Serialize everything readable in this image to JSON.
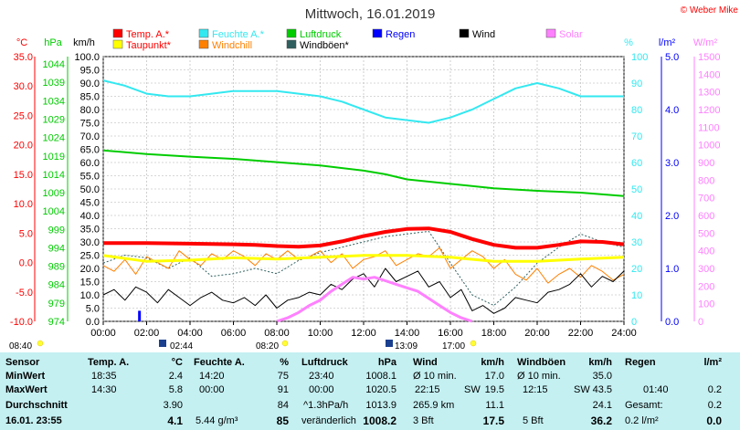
{
  "header": {
    "title": "Mittwoch, 16.01.2019",
    "copyright": "© Weber Mike"
  },
  "legend": [
    {
      "label": "Temp. A.*",
      "color": "#ff0000",
      "row": 0,
      "col": 0
    },
    {
      "label": "Feuchte A.*",
      "color": "#33e8f0",
      "row": 0,
      "col": 1
    },
    {
      "label": "Luftdruck",
      "color": "#00cc00",
      "row": 0,
      "col": 2
    },
    {
      "label": "Regen",
      "color": "#0000ff",
      "row": 0,
      "col": 3
    },
    {
      "label": "Wind",
      "color": "#000000",
      "row": 0,
      "col": 4
    },
    {
      "label": "Solar",
      "color": "#ff80ff",
      "row": 0,
      "col": 5
    },
    {
      "label": "Taupunkt*",
      "color": "#ffff00",
      "row": 1,
      "col": 0
    },
    {
      "label": "Windchill",
      "color": "#ff8000",
      "row": 1,
      "col": 1
    },
    {
      "label": "Windböen*",
      "color": "#2f5f5f",
      "row": 1,
      "col": 2
    }
  ],
  "axis_units": {
    "temp": "°C",
    "pressure": "hPa",
    "wind": "km/h",
    "humidity": "%",
    "rain": "l/m²",
    "solar": "W/m²"
  },
  "colors": {
    "temp": "#ff0000",
    "pressure": "#00cc00",
    "humidity": "#33e8f0",
    "rain": "#0000ff",
    "solar": "#ff80ff",
    "wind": "#000000",
    "dewpoint": "#ffff00",
    "windchill": "#ff8000",
    "gust": "#2f5f5f",
    "stats_bg": "#c4f0f2"
  },
  "chart_data": {
    "type": "line",
    "title": "Mittwoch, 16.01.2019",
    "x_unit": "hour",
    "xlim": [
      0,
      24
    ],
    "x_tick_labels": [
      "00:00",
      "02:00",
      "04:00",
      "06:00",
      "08:00",
      "10:00",
      "12:00",
      "14:00",
      "16:00",
      "18:00",
      "20:00",
      "22:00",
      "24:00"
    ],
    "axes": {
      "temp": {
        "label": "°C",
        "range": [
          -10,
          35
        ],
        "ticks": [
          "35.0",
          "30.0",
          "25.0",
          "20.0",
          "15.0",
          "10.0",
          "5.0",
          "0.0",
          "-5.0",
          "-10.0"
        ]
      },
      "pressure": {
        "label": "hPa",
        "range": [
          974,
          1046
        ],
        "ticks": [
          "1044",
          "1039",
          "1034",
          "1029",
          "1024",
          "1019",
          "1014",
          "1009",
          "1004",
          "999",
          "994",
          "989",
          "984",
          "979",
          "974"
        ]
      },
      "wind": {
        "label": "km/h",
        "range": [
          0,
          100
        ],
        "ticks": [
          "100.0",
          "95.0",
          "90.0",
          "85.0",
          "80.0",
          "75.0",
          "70.0",
          "65.0",
          "60.0",
          "55.0",
          "50.0",
          "45.0",
          "40.0",
          "35.0",
          "30.0",
          "25.0",
          "20.0",
          "15.0",
          "10.0",
          "5.0",
          "0.0"
        ]
      },
      "humidity": {
        "label": "%",
        "range": [
          0,
          100
        ],
        "ticks": [
          "100",
          "90",
          "80",
          "70",
          "60",
          "50",
          "40",
          "30",
          "20",
          "10",
          "0"
        ]
      },
      "rain": {
        "label": "l/m²",
        "range": [
          0,
          5
        ],
        "ticks": [
          "5.0",
          "4.0",
          "3.0",
          "2.0",
          "1.0",
          "0.0"
        ]
      },
      "solar": {
        "label": "W/m²",
        "range": [
          0,
          1500
        ],
        "ticks": [
          "1500",
          "1400",
          "1300",
          "1200",
          "1100",
          "1000",
          "900",
          "800",
          "700",
          "600",
          "500",
          "400",
          "300",
          "200",
          "100",
          "0"
        ]
      }
    },
    "series": [
      {
        "name": "Temp. A.*",
        "axis": "temp",
        "color": "#ff0000",
        "width": 4,
        "x": [
          0,
          2,
          4,
          6,
          7,
          8,
          9,
          10,
          11,
          12,
          13,
          14,
          15,
          16,
          17,
          18,
          19,
          20,
          21,
          22,
          23,
          24
        ],
        "y": [
          3.3,
          3.3,
          3.2,
          3.1,
          3.0,
          2.8,
          2.7,
          2.9,
          3.6,
          4.5,
          5.2,
          5.7,
          5.8,
          5.2,
          4.0,
          3.0,
          2.5,
          2.5,
          3.0,
          3.6,
          3.5,
          3.1
        ]
      },
      {
        "name": "Feuchte A.*",
        "axis": "humidity",
        "color": "#33e8f0",
        "width": 2,
        "x": [
          0,
          1,
          2,
          3,
          4,
          5,
          6,
          7,
          8,
          9,
          10,
          11,
          12,
          13,
          14,
          15,
          16,
          17,
          18,
          19,
          20,
          21,
          22,
          23,
          24
        ],
        "y": [
          91,
          89,
          86,
          85,
          85,
          86,
          87,
          87,
          87,
          86,
          85,
          83,
          80,
          77,
          76,
          75,
          77,
          80,
          84,
          88,
          90,
          88,
          85,
          85,
          85
        ]
      },
      {
        "name": "Luftdruck",
        "axis": "pressure",
        "color": "#00cc00",
        "width": 2,
        "x": [
          0,
          2,
          4,
          6,
          8,
          10,
          12,
          13,
          14,
          16,
          18,
          20,
          22,
          24
        ],
        "y": [
          1020.5,
          1019.5,
          1018.8,
          1018.2,
          1017.3,
          1016.4,
          1015.0,
          1014.0,
          1012.6,
          1011.4,
          1010.2,
          1009.5,
          1009.0,
          1008.1
        ]
      },
      {
        "name": "Taupunkt*",
        "axis": "temp",
        "color": "#ffff00",
        "width": 3,
        "x": [
          0,
          2,
          4,
          6,
          8,
          10,
          12,
          14,
          16,
          18,
          20,
          22,
          24
        ],
        "y": [
          1.2,
          0.2,
          0.4,
          0.8,
          0.6,
          0.9,
          1.2,
          1.2,
          0.9,
          0.2,
          0.2,
          0.6,
          0.9
        ]
      },
      {
        "name": "Windchill",
        "axis": "temp",
        "color": "#ff8000",
        "width": 1,
        "x": [
          0,
          0.5,
          1,
          1.5,
          2,
          2.5,
          3,
          3.5,
          4,
          4.5,
          5,
          5.5,
          6,
          6.5,
          7,
          7.5,
          8,
          8.5,
          9,
          9.5,
          10,
          10.5,
          11,
          11.5,
          12,
          12.5,
          13,
          13.5,
          14,
          14.5,
          15,
          15.5,
          16,
          16.5,
          17,
          17.5,
          18,
          18.5,
          19,
          19.5,
          20,
          20.5,
          21,
          21.5,
          22,
          22.5,
          23,
          23.5,
          24
        ],
        "y": [
          -0.5,
          -1.5,
          0.5,
          -2.0,
          1.0,
          0.0,
          -1.0,
          2.0,
          0.5,
          -0.5,
          1.5,
          0.5,
          2.0,
          1.0,
          -0.5,
          1.5,
          0.5,
          2.0,
          0.5,
          1.0,
          2.0,
          0.0,
          1.5,
          -1.0,
          0.5,
          1.0,
          2.0,
          -0.5,
          0.5,
          1.5,
          1.0,
          2.5,
          -1.0,
          0.5,
          2.0,
          1.0,
          -1.0,
          0.5,
          -2.0,
          -3.0,
          -1.0,
          -3.5,
          -2.0,
          -1.0,
          -2.5,
          -0.5,
          -1.5,
          -3.0,
          -2.0
        ]
      },
      {
        "name": "Windböen*",
        "axis": "wind",
        "color": "#2f5f5f",
        "width": 1,
        "dash": "2,2",
        "x": [
          0,
          1,
          2,
          3,
          4,
          5,
          6,
          7,
          8,
          9,
          10,
          11,
          12,
          13,
          14,
          15,
          16,
          17,
          18,
          19,
          20,
          21,
          22,
          23,
          24
        ],
        "y": [
          22,
          25,
          24,
          20,
          24,
          17,
          18,
          20,
          18,
          23,
          26,
          28,
          30,
          32,
          33,
          34,
          22,
          10,
          6,
          13,
          22,
          28,
          33,
          30,
          28
        ]
      },
      {
        "name": "Wind",
        "axis": "wind",
        "color": "#000000",
        "width": 1,
        "x": [
          0,
          0.5,
          1,
          1.5,
          2,
          2.5,
          3,
          3.5,
          4,
          4.5,
          5,
          5.5,
          6,
          6.5,
          7,
          7.5,
          8,
          8.5,
          9,
          9.5,
          10,
          10.5,
          11,
          11.5,
          12,
          12.5,
          13,
          13.5,
          14,
          14.5,
          15,
          15.5,
          16,
          16.5,
          17,
          17.5,
          18,
          18.5,
          19,
          19.5,
          20,
          20.5,
          21,
          21.5,
          22,
          22.5,
          23,
          23.5,
          24
        ],
        "y": [
          10,
          12,
          8,
          13,
          11,
          7,
          12,
          9,
          6,
          9,
          11,
          8,
          7,
          9,
          6,
          10,
          5,
          8,
          9,
          11,
          10,
          14,
          12,
          16,
          18,
          13,
          20,
          15,
          17,
          19,
          13,
          15,
          9,
          12,
          4,
          6,
          3,
          5,
          9,
          8,
          7,
          11,
          12,
          14,
          18,
          13,
          17,
          15,
          19
        ]
      },
      {
        "name": "Solar",
        "axis": "solar",
        "color": "#ff80ff",
        "width": 3,
        "x": [
          8.0,
          8.5,
          9.0,
          9.5,
          10.0,
          10.5,
          11.0,
          11.5,
          12.0,
          12.5,
          13.0,
          13.5,
          14.0,
          14.5,
          15.0,
          15.5,
          16.0,
          16.5,
          17.0
        ],
        "y": [
          0,
          20,
          50,
          90,
          120,
          170,
          210,
          250,
          240,
          250,
          230,
          210,
          190,
          170,
          130,
          90,
          50,
          20,
          0
        ]
      }
    ],
    "rain_bars": {
      "name": "Regen",
      "axis": "rain",
      "color": "#0000ff",
      "x": [
        1.67
      ],
      "y": [
        0.2
      ]
    }
  },
  "sun_times": [
    {
      "label": "08:40",
      "row": "upper"
    },
    {
      "label": "02:44",
      "row": "lower"
    },
    {
      "label": "08:20",
      "row": "lower"
    },
    {
      "label": "13:09",
      "row": "lower"
    },
    {
      "label": "17:00",
      "row": "lower"
    }
  ],
  "stats": {
    "rows": [
      "Sensor",
      "MinWert",
      "MaxWert",
      "Durchschnitt",
      "16.01. 23:55"
    ],
    "temp": {
      "head": "Temp. A.",
      "unit": "°C",
      "min_time": "18:35",
      "min": "2.4",
      "max_time": "14:30",
      "max": "5.8",
      "avg": "3.90",
      "current": "4.1"
    },
    "humidity": {
      "head": "Feuchte A.",
      "unit": "%",
      "min_time": "14:20",
      "min": "75",
      "max_time": "00:00",
      "max": "91",
      "avg": "84",
      "current": "85",
      "abs": "5.44 g/m³"
    },
    "pressure": {
      "head": "Luftdruck",
      "unit": "hPa",
      "min_time": "23:40",
      "min": "1008.1",
      "max_time": "00:00",
      "max": "1020.5",
      "trend": "^1.3hPa/h",
      "avg": "1013.9",
      "tendency": "veränderlich",
      "current": "1008.2"
    },
    "wind": {
      "head": "Wind",
      "unit": "km/h",
      "avg_label": "Ø 10 min.",
      "avg_10": "17.0",
      "max_time": "22:15",
      "max_dir": "SW",
      "max": "19.5",
      "run": "265.9 km",
      "avg": "11.1",
      "bft": "3 Bft",
      "current": "17.5"
    },
    "gust": {
      "head": "Windböen",
      "unit": "km/h",
      "avg_label": "Ø 10 min.",
      "avg_10": "35.0",
      "max_time": "12:15",
      "max_dir": "SW",
      "max": "43.5",
      "avg": "24.1",
      "bft": "5 Bft",
      "current": "36.2"
    },
    "rain": {
      "head": "Regen",
      "unit": "l/m²",
      "max_time": "01:40",
      "max": "0.2",
      "total_label": "Gesamt:",
      "total": "0.2",
      "rate": "0.2 l/m²",
      "current": "0.0"
    }
  }
}
